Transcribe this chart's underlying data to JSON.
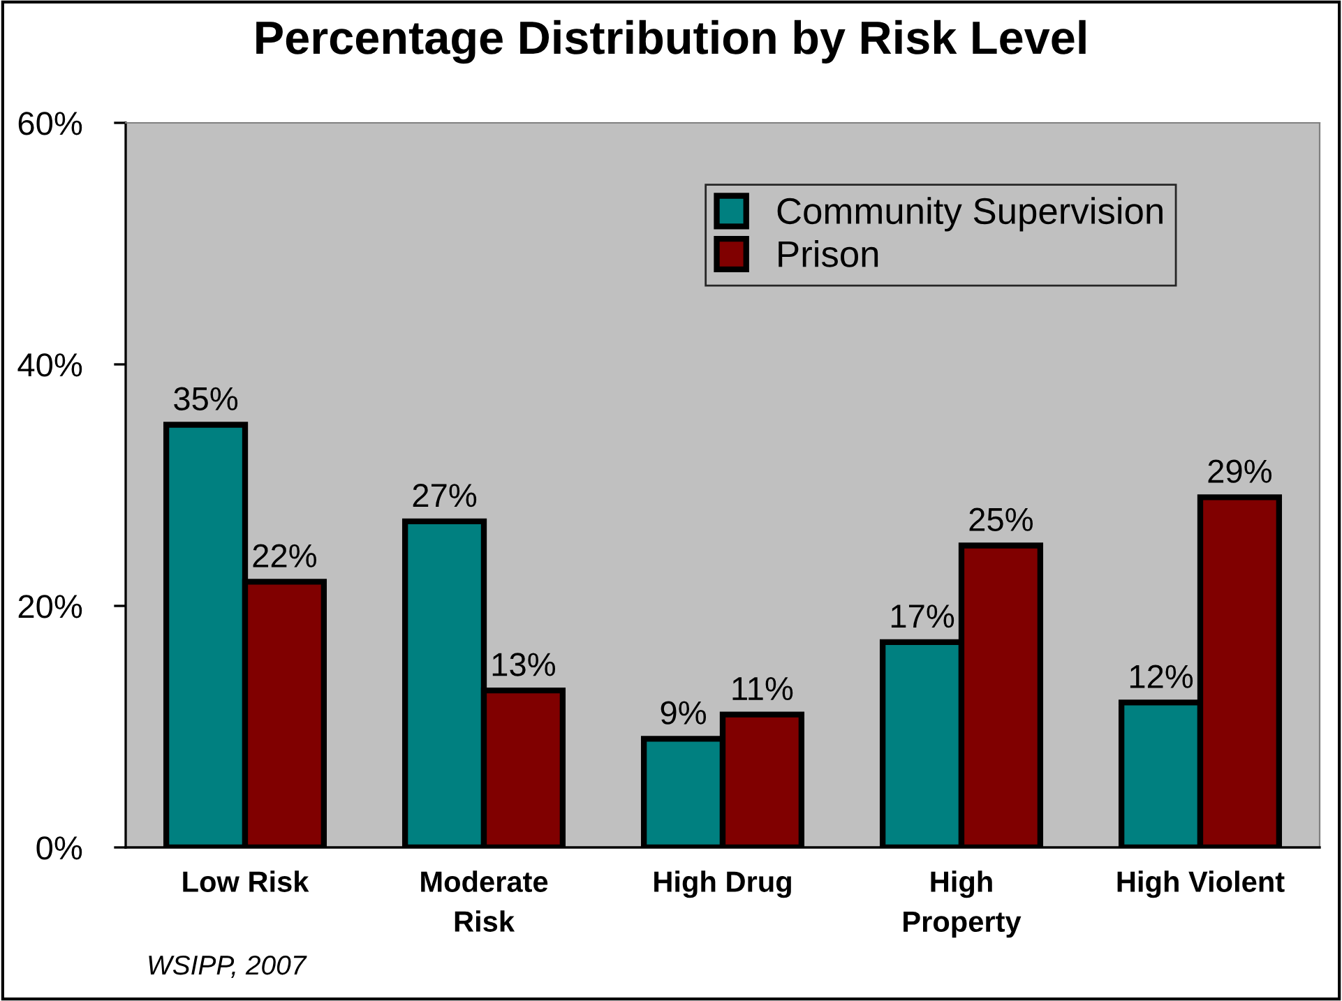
{
  "chart_data": {
    "type": "bar",
    "title": "Percentage Distribution by Risk Level",
    "categories": [
      "Low Risk",
      "Moderate\nRisk",
      "High Drug",
      "High\nProperty",
      "High Violent"
    ],
    "series": [
      {
        "name": "Community Supervision",
        "color": "#008080",
        "values": [
          35,
          27,
          9,
          17,
          12
        ],
        "value_labels": [
          "35%",
          "27%",
          "9%",
          "17%",
          "12%"
        ]
      },
      {
        "name": "Prison",
        "color": "#800000",
        "values": [
          22,
          13,
          11,
          25,
          29
        ],
        "value_labels": [
          "22%",
          "13%",
          "11%",
          "25%",
          "29%"
        ]
      }
    ],
    "ylim": [
      0,
      60
    ],
    "yticks": [
      {
        "value": 0,
        "label": "0%"
      },
      {
        "value": 20,
        "label": "20%"
      },
      {
        "value": 40,
        "label": "40%"
      },
      {
        "value": 60,
        "label": "60%"
      }
    ],
    "grid": false,
    "legend": "top right",
    "annotations": [
      "WSIPP, 2007"
    ]
  }
}
